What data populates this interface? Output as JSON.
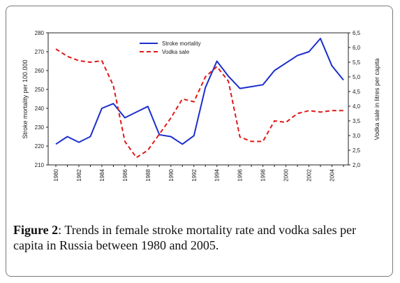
{
  "chart_data": {
    "type": "line",
    "x": [
      1980,
      1981,
      1982,
      1983,
      1984,
      1985,
      1986,
      1987,
      1988,
      1989,
      1990,
      1991,
      1992,
      1993,
      1994,
      1995,
      1996,
      1997,
      1998,
      1999,
      2000,
      2001,
      2002,
      2003,
      2004,
      2005
    ],
    "x_tick_labels": [
      "1980",
      "1982",
      "1984",
      "1986",
      "1988",
      "1990",
      "1992",
      "1994",
      "1996",
      "1998",
      "2000",
      "2002",
      "2004"
    ],
    "y_left_tick_labels": [
      "210",
      "220",
      "230",
      "240",
      "250",
      "260",
      "270",
      "280"
    ],
    "y_right_tick_labels": [
      "2,0",
      "2,5",
      "3,0",
      "3,5",
      "4,0",
      "4,5",
      "5,0",
      "5,5",
      "6,0",
      "6,5"
    ],
    "ylabel": "Stroke mortality per 100.000",
    "ylabel_right": "Vodka sale in litres per capita",
    "ylim": [
      210,
      280
    ],
    "ylim_right": [
      2.0,
      6.5
    ],
    "xlim": [
      1980,
      2005
    ],
    "grid": false,
    "legend_position": "top-center",
    "series": [
      {
        "name": "Stroke mortality",
        "axis": "left",
        "color": "#1a2ecc",
        "style": "solid",
        "values": [
          221,
          225,
          222,
          225,
          240,
          242.5,
          235,
          238,
          241,
          226,
          225,
          221,
          225.5,
          251,
          265,
          257,
          250.5,
          251.5,
          252.5,
          260,
          264,
          268,
          270,
          277,
          262.5,
          255
        ]
      },
      {
        "name": "Vodka sale",
        "axis": "right",
        "color": "#e01818",
        "style": "dashed",
        "values": [
          5.95,
          5.7,
          5.55,
          5.5,
          5.55,
          4.7,
          2.8,
          2.25,
          2.5,
          3.05,
          3.6,
          4.25,
          4.15,
          5.0,
          5.35,
          4.85,
          2.95,
          2.8,
          2.8,
          3.5,
          3.45,
          3.75,
          3.85,
          3.8,
          3.85,
          3.85
        ]
      }
    ]
  },
  "caption": {
    "label": "Figure 2",
    "text": ": Trends in female stroke mortality rate and vodka sales per capita in Russia between 1980 and 2005."
  }
}
